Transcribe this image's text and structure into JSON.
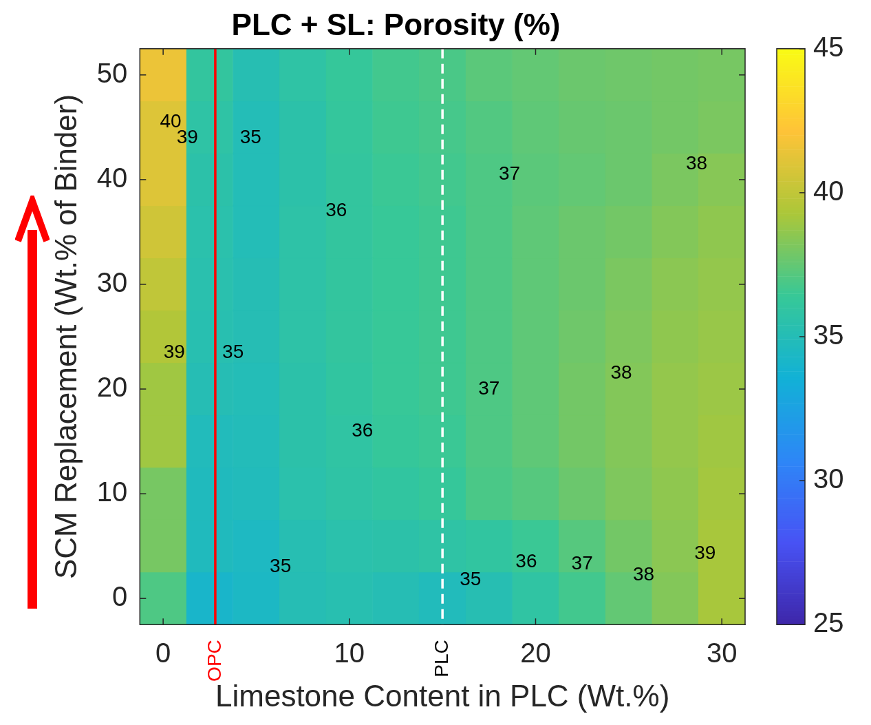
{
  "chart_data": {
    "type": "heatmap",
    "title": "PLC + SL: Porosity (%)",
    "xlabel": "Limestone Content in PLC (Wt.%)",
    "ylabel": "SCM Replacement (Wt.% of Binder)",
    "categories": [
      "0",
      null,
      null,
      null,
      "10",
      null,
      null,
      null,
      "20",
      null,
      null,
      null,
      "30"
    ],
    "y_categories": [
      "50",
      null,
      "40",
      null,
      "30",
      null,
      "20",
      null,
      "10",
      null,
      "0"
    ],
    "cells": [
      [
        41.5,
        36.1,
        35.2,
        35.8,
        36.3,
        36.7,
        36.9,
        37.3,
        37.5,
        37.7,
        37.8,
        37.9,
        38
      ],
      [
        41,
        35.8,
        35,
        35.6,
        36.2,
        36.6,
        36.8,
        37.1,
        37.4,
        37.6,
        37.7,
        37.9,
        38.1
      ],
      [
        41,
        35.6,
        35,
        35.6,
        36.1,
        36.5,
        36.7,
        37,
        37.3,
        37.5,
        37.7,
        38.1,
        38.4
      ],
      [
        40.5,
        35.5,
        35,
        35.7,
        36.1,
        36.4,
        36.6,
        37,
        37.4,
        37.7,
        37.9,
        38.3,
        38.6
      ],
      [
        40,
        35.4,
        35.1,
        35.7,
        36.1,
        36.4,
        36.6,
        37,
        37.4,
        37.7,
        38.1,
        38.5,
        38.7
      ],
      [
        39.5,
        35.3,
        35.1,
        35.7,
        36.1,
        36.4,
        36.6,
        37,
        37.4,
        37.8,
        38.2,
        38.6,
        38.8
      ],
      [
        39,
        35.1,
        35,
        35.6,
        36,
        36.4,
        36.6,
        37,
        37.4,
        37.9,
        38.3,
        38.7,
        38.9
      ],
      [
        39,
        34.8,
        34.9,
        35.6,
        35.9,
        36.3,
        36.5,
        37,
        37.4,
        37.9,
        38.3,
        38.7,
        39
      ],
      [
        38,
        34.7,
        34.8,
        35.5,
        35.8,
        36,
        36.3,
        36.9,
        37.2,
        37.7,
        38.2,
        38.6,
        39.1
      ],
      [
        38,
        34.7,
        34.5,
        35.2,
        35.5,
        35.6,
        35.8,
        36,
        36.5,
        37.2,
        37.9,
        38.5,
        39.2
      ],
      [
        37,
        34.1,
        34.4,
        35.1,
        35.3,
        35.1,
        34.8,
        35.2,
        35.9,
        36.7,
        37.5,
        38.3,
        39.2
      ]
    ],
    "clim": [
      25,
      45
    ],
    "cticks": [
      25,
      30,
      35,
      40,
      45
    ],
    "annotations": [
      "35",
      "35",
      "36",
      "37",
      "38",
      "39",
      "35",
      "36",
      "37",
      "38",
      "37",
      "38",
      "36",
      "35",
      "39",
      "40",
      "39",
      "OPC",
      "PLC"
    ]
  }
}
